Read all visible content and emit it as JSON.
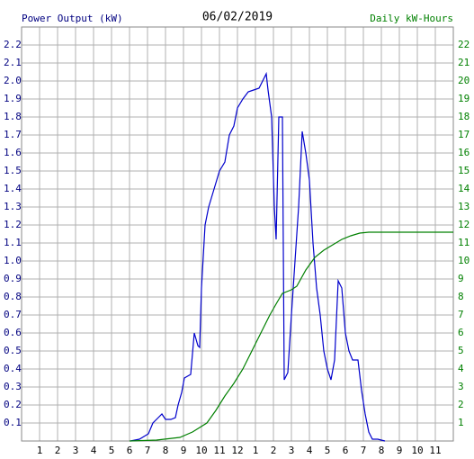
{
  "chart_data": {
    "type": "line",
    "title": "06/02/2019",
    "y_label": "Power Output (kW)",
    "y2_label": "Daily kW-Hours",
    "grid": true,
    "xlim": [
      0,
      24
    ],
    "xticks": [
      1,
      2,
      3,
      4,
      5,
      6,
      7,
      8,
      9,
      10,
      11,
      12,
      {
        "value": 13,
        "label": "1"
      },
      {
        "value": 14,
        "label": "2"
      },
      {
        "value": 15,
        "label": "3"
      },
      {
        "value": 16,
        "label": "4"
      },
      {
        "value": 17,
        "label": "5"
      },
      {
        "value": 18,
        "label": "6"
      },
      {
        "value": 19,
        "label": "7"
      },
      {
        "value": 20,
        "label": "8"
      },
      {
        "value": 21,
        "label": "9"
      },
      {
        "value": 22,
        "label": "10"
      },
      {
        "value": 23,
        "label": "11"
      }
    ],
    "ylim": [
      0,
      2.3
    ],
    "yticks": [
      0.1,
      0.2,
      0.3,
      0.4,
      0.5,
      0.6,
      0.7,
      0.8,
      0.9,
      {
        "value": 1,
        "label": "1.0"
      },
      1.1,
      1.2,
      1.3,
      1.4,
      1.5,
      1.6,
      1.7,
      1.8,
      1.9,
      {
        "value": 2,
        "label": "2.0"
      },
      2.1,
      2.2
    ],
    "y2lim": [
      0,
      23
    ],
    "y2ticks": [
      1,
      2,
      3,
      4,
      5,
      6,
      7,
      8,
      9,
      10,
      11,
      12,
      13,
      14,
      15,
      16,
      17,
      18,
      19,
      20,
      21,
      22
    ],
    "y_color": "#000080",
    "y2_color": "#008000",
    "series": [
      {
        "name": "Power Output (kW)",
        "color": "#0000cc",
        "x": [
          6.05,
          6.55,
          7.05,
          7.3,
          7.6,
          7.8,
          8.0,
          8.3,
          8.55,
          8.7,
          8.9,
          9.05,
          9.4,
          9.6,
          9.8,
          9.9,
          10.0,
          10.2,
          10.4,
          10.7,
          11.0,
          11.3,
          11.55,
          11.8,
          12.0,
          12.3,
          12.6,
          12.9,
          13.2,
          13.4,
          13.6,
          13.7,
          13.9,
          14.05,
          14.15,
          14.3,
          14.5,
          14.6,
          14.8,
          15.0,
          15.2,
          15.4,
          15.6,
          15.8,
          16.0,
          16.2,
          16.4,
          16.6,
          16.8,
          17.0,
          17.2,
          17.4,
          17.6,
          17.8,
          18.0,
          18.2,
          18.4,
          18.7,
          18.9,
          19.1,
          19.3,
          19.5,
          19.8,
          20.2
        ],
        "values": [
          0,
          0.01,
          0.04,
          0.1,
          0.13,
          0.15,
          0.12,
          0.12,
          0.13,
          0.2,
          0.27,
          0.35,
          0.37,
          0.6,
          0.53,
          0.52,
          0.85,
          1.2,
          1.3,
          1.4,
          1.5,
          1.55,
          1.7,
          1.75,
          1.85,
          1.9,
          1.94,
          1.95,
          1.96,
          2.0,
          2.04,
          1.95,
          1.8,
          1.3,
          1.12,
          1.8,
          1.8,
          0.34,
          0.38,
          0.7,
          1.0,
          1.3,
          1.72,
          1.6,
          1.45,
          1.1,
          0.85,
          0.7,
          0.5,
          0.4,
          0.34,
          0.45,
          0.89,
          0.85,
          0.6,
          0.5,
          0.45,
          0.45,
          0.28,
          0.15,
          0.05,
          0.01,
          0.01,
          0
        ]
      },
      {
        "name": "Daily kW-Hours",
        "color": "#008000",
        "axis": "y2",
        "x": [
          6.0,
          7.5,
          8.8,
          9.5,
          10.3,
          10.8,
          11.3,
          11.8,
          12.3,
          12.8,
          13.3,
          13.8,
          14.2,
          14.5,
          15.0,
          15.3,
          15.8,
          16.3,
          16.8,
          17.3,
          17.8,
          18.3,
          18.8,
          19.3,
          19.8,
          24
        ],
        "values": [
          0,
          0.05,
          0.2,
          0.5,
          1.0,
          1.7,
          2.5,
          3.2,
          4.0,
          5.0,
          6.0,
          7.0,
          7.7,
          8.2,
          8.4,
          8.6,
          9.5,
          10.2,
          10.6,
          10.9,
          11.2,
          11.4,
          11.55,
          11.6,
          11.6,
          11.6
        ]
      }
    ]
  }
}
